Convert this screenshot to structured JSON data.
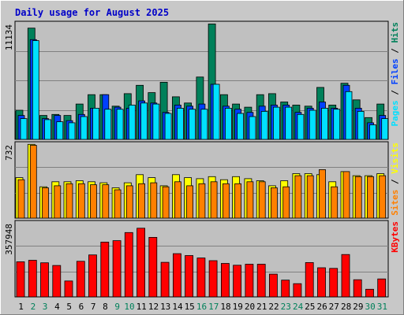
{
  "chart_data": {
    "type": "bar",
    "title": "Daily usage for August 2025",
    "categories": [
      "1",
      "2",
      "3",
      "4",
      "5",
      "6",
      "7",
      "8",
      "9",
      "10",
      "11",
      "12",
      "13",
      "14",
      "15",
      "16",
      "17",
      "18",
      "19",
      "20",
      "21",
      "22",
      "23",
      "24",
      "25",
      "26",
      "27",
      "28",
      "29",
      "30",
      "31"
    ],
    "weekend_days": [
      "2",
      "3",
      "9",
      "10",
      "16",
      "17",
      "23",
      "24",
      "30",
      "31"
    ],
    "colors": {
      "hits": "#00805a",
      "files": "#0040ff",
      "pages": "#00e0ff",
      "visits": "#ffff00",
      "sites": "#ff8000",
      "kbytes": "#ff0000",
      "weekday_label": "#000000",
      "weekend_label": "#00805a",
      "background": "#c0c0c0"
    },
    "panels": [
      {
        "id": "hits-files-pages",
        "max_label": "11134",
        "ylim": [
          0,
          11134
        ],
        "legend": [
          {
            "label": "Hits",
            "color": "#00805a"
          },
          {
            "label": "Files",
            "color": "#0040ff"
          },
          {
            "label": "Pages",
            "color": "#00e0ff"
          }
        ],
        "separator": "/",
        "series": [
          {
            "key": "hits",
            "values": [
              2800,
              10700,
              2300,
              2400,
              2300,
              3400,
              4300,
              4300,
              3200,
              4400,
              5200,
              4500,
              5500,
              4100,
              3500,
              6000,
              11100,
              4300,
              3400,
              3100,
              4300,
              4400,
              3600,
              3300,
              3200,
              5000,
              3300,
              5400,
              3800,
              2100,
              3400
            ]
          },
          {
            "key": "files",
            "values": [
              2300,
              9600,
              2000,
              2300,
              1800,
              2400,
              3000,
              4300,
              3100,
              3000,
              3700,
              3500,
              2600,
              3300,
              3200,
              3400,
              5300,
              3200,
              2900,
              2600,
              3200,
              3300,
              3300,
              2600,
              3000,
              3600,
              3000,
              5200,
              3000,
              1600,
              2300
            ]
          },
          {
            "key": "pages",
            "values": [
              2000,
              9500,
              1900,
              1700,
              1600,
              2200,
              3000,
              2900,
              2900,
              3300,
              3500,
              3400,
              2500,
              3000,
              2900,
              2900,
              5300,
              3000,
              2500,
              2200,
              2700,
              3100,
              3100,
              2400,
              2800,
              3000,
              2900,
              4600,
              2700,
              1400,
              2000
            ]
          }
        ]
      },
      {
        "id": "visits-sites",
        "max_label": "732",
        "ylim": [
          0,
          732
        ],
        "legend": [
          {
            "label": "Visits",
            "color": "#ffff00"
          },
          {
            "label": "Sites",
            "color": "#ff8000"
          }
        ],
        "separator": "/",
        "series": [
          {
            "key": "visits",
            "values": [
              400,
              730,
              310,
              360,
              360,
              370,
              360,
              350,
              300,
              350,
              430,
              400,
              320,
              430,
              400,
              390,
              410,
              380,
              410,
              390,
              370,
              320,
              370,
              440,
              440,
              430,
              360,
              460,
              420,
              420,
              440
            ]
          },
          {
            "key": "sites",
            "values": [
              380,
              720,
              300,
              320,
              340,
              340,
              330,
              330,
              280,
              320,
              340,
              350,
              310,
              360,
              320,
              340,
              360,
              340,
              340,
              360,
              360,
              300,
              310,
              420,
              420,
              480,
              310,
              460,
              410,
              410,
              420
            ]
          }
        ]
      },
      {
        "id": "kbytes",
        "max_label": "357948",
        "ylim": [
          0,
          357948
        ],
        "legend": [
          {
            "label": "KBytes",
            "color": "#ff0000"
          }
        ],
        "series": [
          {
            "key": "kbytes",
            "values": [
              170000,
              177000,
              165000,
              152000,
              77000,
              172000,
              203000,
              265000,
              272000,
              311000,
              332000,
              288000,
              167000,
              209000,
              200000,
              188000,
              175000,
              162000,
              153000,
              158000,
              158000,
              110000,
              81000,
              64000,
              166000,
              141000,
              138000,
              205000,
              83000,
              37000,
              87000
            ]
          }
        ]
      }
    ]
  }
}
